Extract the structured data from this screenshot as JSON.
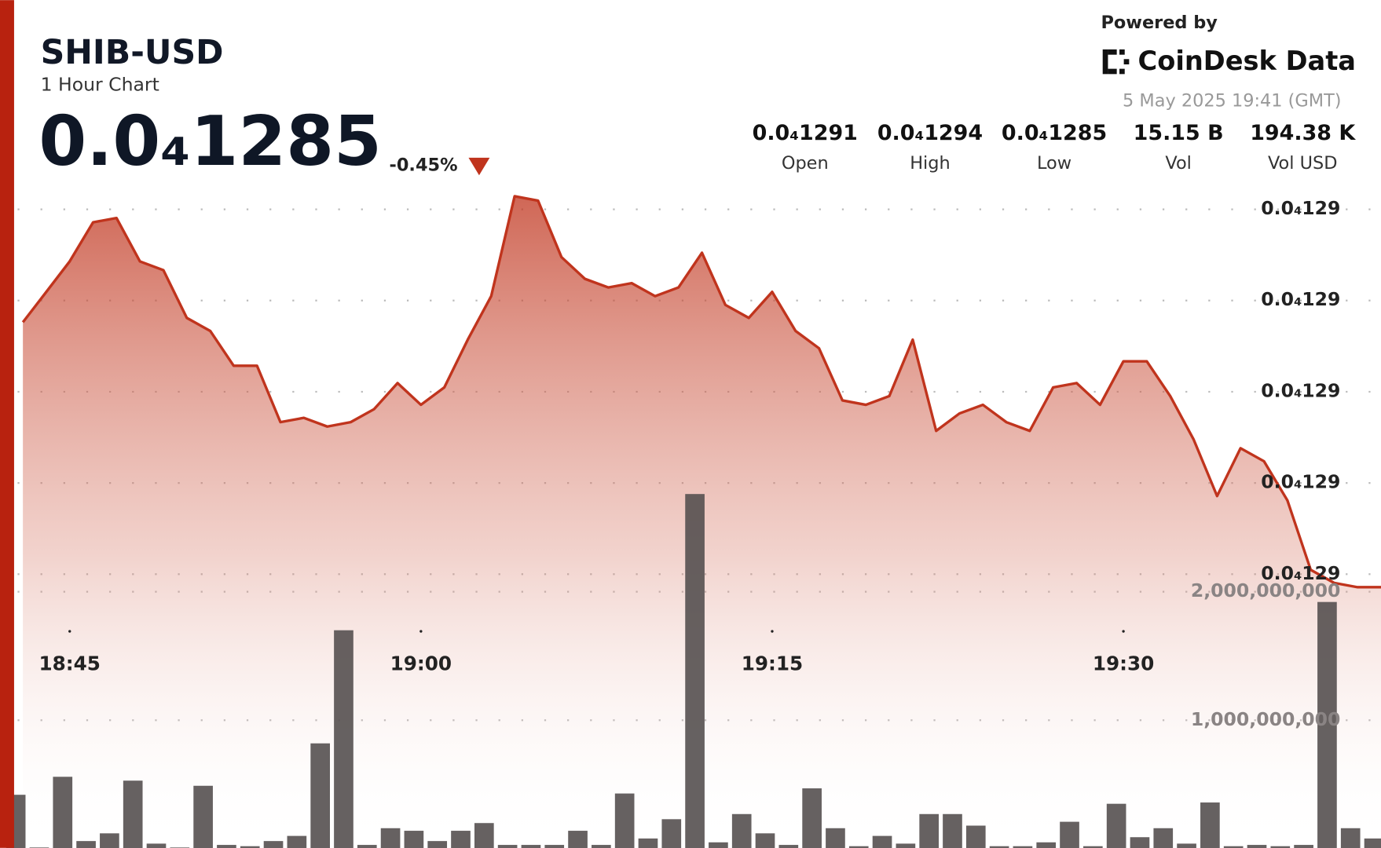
{
  "header": {
    "title": "SHIB-USD",
    "subtitle": "1 Hour Chart",
    "price": "0.0₄1285",
    "change": "-0.45%",
    "powered_by": "Powered by",
    "brand": "CoinDesk Data",
    "timestamp": "5 May 2025 19:41 (GMT)",
    "stats": [
      {
        "value": "0.0₄1291",
        "label": "Open"
      },
      {
        "value": "0.0₄1294",
        "label": "High"
      },
      {
        "value": "0.0₄1285",
        "label": "Low"
      },
      {
        "value": "15.15 B",
        "label": "Vol"
      },
      {
        "value": "194.38 K",
        "label": "Vol USD"
      }
    ]
  },
  "chart_data": {
    "type": "area",
    "x": [
      1123,
      1124,
      1125,
      1126,
      1127,
      1128,
      1129,
      1130,
      1131,
      1132,
      1133,
      1134,
      1135,
      1136,
      1137,
      1138,
      1139,
      1140,
      1141,
      1142,
      1143,
      1144,
      1145,
      1146,
      1147,
      1148,
      1149,
      1150,
      1151,
      1152,
      1153,
      1154,
      1155,
      1156,
      1157,
      1158,
      1159,
      1160,
      1161,
      1162,
      1163,
      1164,
      1165,
      1166,
      1167,
      1168,
      1169,
      1170,
      1171,
      1172,
      1173,
      1174,
      1175,
      1176,
      1177,
      1178,
      1179,
      1180,
      1181
    ],
    "xlim": [
      1122.7,
      1181
    ],
    "xticks": [
      {
        "value": 1125,
        "label": "18:45"
      },
      {
        "value": 1140,
        "label": "19:00"
      },
      {
        "value": 1155,
        "label": "19:15"
      },
      {
        "value": 1170,
        "label": "19:30"
      }
    ],
    "series": [
      {
        "type": "area",
        "color": "#c0341d",
        "values": [
          1.2911e-05,
          1.2918e-05,
          1.2925e-05,
          1.2934e-05,
          1.2935e-05,
          1.2925e-05,
          1.2923e-05,
          1.2912e-05,
          1.2909e-05,
          1.2901e-05,
          1.2901e-05,
          1.2888e-05,
          1.2889e-05,
          1.2887e-05,
          1.2888e-05,
          1.2891e-05,
          1.2897e-05,
          1.2892e-05,
          1.2896e-05,
          1.2907e-05,
          1.2917e-05,
          1.294e-05,
          1.2939e-05,
          1.2926e-05,
          1.2921e-05,
          1.2919e-05,
          1.292e-05,
          1.2917e-05,
          1.2919e-05,
          1.2927e-05,
          1.2915e-05,
          1.2912e-05,
          1.2918e-05,
          1.2909e-05,
          1.2905e-05,
          1.2893e-05,
          1.2892e-05,
          1.2894e-05,
          1.2907e-05,
          1.2886e-05,
          1.289e-05,
          1.2892e-05,
          1.2888e-05,
          1.2886e-05,
          1.2896e-05,
          1.2897e-05,
          1.2892e-05,
          1.2902e-05,
          1.2902e-05,
          1.2894e-05,
          1.2884e-05,
          1.2871e-05,
          1.2882e-05,
          1.2879e-05,
          1.287e-05,
          1.2854e-05,
          1.2851e-05,
          1.285e-05,
          1.285e-05
        ]
      },
      {
        "type": "bar",
        "axis": "y2",
        "color": "#555050",
        "values": [
          420000000,
          10000000,
          560000000,
          60000000,
          120000000,
          530000000,
          40000000,
          10000000,
          490000000,
          30000000,
          20000000,
          60000000,
          100000000,
          820000000,
          1700000000,
          30000000,
          160000000,
          140000000,
          60000000,
          140000000,
          200000000,
          30000000,
          30000000,
          30000000,
          140000000,
          30000000,
          430000000,
          80000000,
          230000000,
          2760000000,
          50000000,
          270000000,
          120000000,
          30000000,
          470000000,
          160000000,
          20000000,
          100000000,
          40000000,
          270000000,
          270000000,
          180000000,
          20000000,
          20000000,
          50000000,
          210000000,
          20000000,
          350000000,
          90000000,
          160000000,
          40000000,
          360000000,
          20000000,
          30000000,
          20000000,
          30000000,
          1920000000,
          160000000,
          80000000
        ]
      }
    ],
    "ylim": [
      1.279e-05,
      1.2958e-05
    ],
    "yticks": [
      {
        "value": 1.2937e-05,
        "label": "0.0₄129"
      },
      {
        "value": 1.2916e-05,
        "label": "0.0₄129"
      },
      {
        "value": 1.2895e-05,
        "label": "0.0₄129"
      },
      {
        "value": 1.2874e-05,
        "label": "0.0₄129"
      },
      {
        "value": 1.2853e-05,
        "label": "0.0₄129"
      }
    ],
    "y2lim": [
      0,
      3000000000
    ],
    "y2ticks": [
      {
        "value": 1000000000,
        "label": "1,000,000,000"
      },
      {
        "value": 2000000000,
        "label": "2,000,000,000"
      }
    ],
    "grid": true
  }
}
